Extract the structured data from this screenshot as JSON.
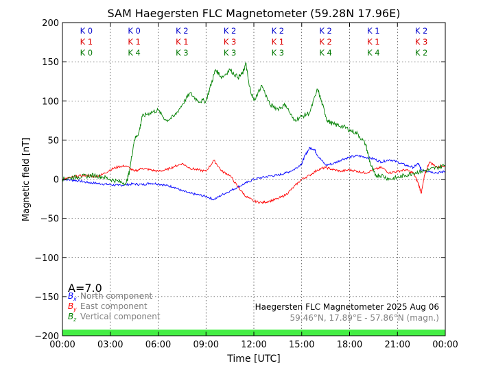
{
  "chart_data": {
    "type": "line",
    "title": "SAM Haegersten FLC Magnetometer (59.28N 17.96E)",
    "xlabel": "Time [UTC]",
    "ylabel": "Magnetic field [nT]",
    "xlim": [
      0,
      24
    ],
    "ylim": [
      -200,
      200
    ],
    "grid": true,
    "x_ticks": [
      0,
      3,
      6,
      9,
      12,
      15,
      18,
      21,
      24
    ],
    "x_tick_labels": [
      "00:00",
      "03:00",
      "06:00",
      "09:00",
      "12:00",
      "15:00",
      "18:00",
      "21:00",
      "00:00"
    ],
    "y_ticks": [
      200,
      150,
      100,
      50,
      0,
      -50,
      -100,
      -150,
      -200
    ],
    "y_tick_labels": [
      "200",
      "150",
      "100",
      "50",
      "0",
      "−50",
      "−100",
      "−150",
      "−200"
    ],
    "k_index_rows": [
      {
        "color": "#0000cc",
        "values": [
          "K 0",
          "K 0",
          "K 2",
          "K 2",
          "K 2",
          "K 2",
          "K 1",
          "K 2"
        ]
      },
      {
        "color": "#dd0000",
        "values": [
          "K 1",
          "K 1",
          "K 1",
          "K 3",
          "K 1",
          "K 2",
          "K 1",
          "K 3"
        ]
      },
      {
        "color": "#007700",
        "values": [
          "K 0",
          "K 4",
          "K 3",
          "K 3",
          "K 3",
          "K 4",
          "K 4",
          "K 2"
        ]
      }
    ],
    "a_index": "A=7.0",
    "legend": {
      "placement": "bottom-left",
      "entries": [
        {
          "symbol": "B",
          "sub": "x",
          "label": "North component",
          "color": "#0000ff"
        },
        {
          "symbol": "B",
          "sub": "y",
          "label": "East component",
          "color": "#ff0000"
        },
        {
          "symbol": "B",
          "sub": "z",
          "label": "Vertical component",
          "color": "#008000"
        }
      ]
    },
    "station_info": {
      "line1": "Haegersten FLC Magnetometer 2025 Aug 06",
      "line2": "59.46°N, 17.89°E - 57.86°N (magn.)"
    },
    "status_bar_color": "#44ee44",
    "series": [
      {
        "name": "North component",
        "color": "#0000ff",
        "x": [
          0,
          0.5,
          1,
          1.5,
          2,
          2.5,
          3,
          3.5,
          4,
          4.5,
          5,
          5.5,
          6,
          6.5,
          7,
          7.5,
          8,
          8.5,
          9,
          9.5,
          10,
          10.5,
          11,
          11.5,
          12,
          12.5,
          13,
          13.5,
          14,
          14.5,
          15,
          15.2,
          15.5,
          15.8,
          16,
          16.5,
          17,
          17.5,
          18,
          18.5,
          19,
          19.5,
          20,
          20.5,
          21,
          21.5,
          22,
          22.3,
          22.5,
          23,
          23.5,
          24
        ],
        "y": [
          0,
          -1,
          -2,
          -4,
          -5,
          -6,
          -7,
          -8,
          -7,
          -6,
          -7,
          -5,
          -6,
          -8,
          -10,
          -15,
          -18,
          -20,
          -22,
          -26,
          -20,
          -15,
          -10,
          -5,
          0,
          2,
          4,
          5,
          8,
          12,
          20,
          30,
          40,
          38,
          30,
          18,
          20,
          25,
          28,
          30,
          28,
          26,
          22,
          25,
          22,
          18,
          15,
          20,
          12,
          10,
          8,
          10
        ]
      },
      {
        "name": "East component",
        "color": "#ff0000",
        "x": [
          0,
          0.5,
          1,
          1.5,
          2,
          2.5,
          3,
          3.5,
          4,
          4.5,
          5,
          5.5,
          6,
          6.5,
          7,
          7.5,
          8,
          8.5,
          9,
          9.5,
          10,
          10.5,
          11,
          11.5,
          12,
          12.5,
          13,
          13.5,
          14,
          14.5,
          15,
          15.5,
          16,
          16.5,
          17,
          17.5,
          18,
          18.5,
          19,
          19.5,
          20,
          20.5,
          21,
          21.5,
          22,
          22.3,
          22.5,
          22.7,
          23,
          23.5,
          24
        ],
        "y": [
          0,
          2,
          4,
          5,
          3,
          6,
          12,
          16,
          17,
          10,
          14,
          12,
          10,
          12,
          16,
          20,
          14,
          12,
          10,
          24,
          10,
          5,
          -10,
          -22,
          -28,
          -30,
          -28,
          -25,
          -20,
          -10,
          0,
          5,
          12,
          15,
          12,
          10,
          12,
          10,
          8,
          12,
          15,
          8,
          10,
          12,
          8,
          -5,
          -18,
          5,
          22,
          15,
          18
        ]
      },
      {
        "name": "Vertical component",
        "color": "#008000",
        "x": [
          0,
          0.5,
          1,
          1.5,
          2,
          2.5,
          3,
          3.5,
          4,
          4.2,
          4.5,
          4.8,
          5,
          5.5,
          6,
          6.5,
          7,
          7.5,
          8,
          8.5,
          9,
          9.3,
          9.6,
          10,
          10.5,
          11,
          11.3,
          11.5,
          11.7,
          12,
          12.5,
          13,
          13.5,
          14,
          14.5,
          15,
          15.5,
          16,
          16.3,
          16.6,
          17,
          17.5,
          18,
          18.5,
          19,
          19.3,
          19.6,
          20,
          20.5,
          21,
          21.5,
          22,
          22.5,
          23,
          23.5,
          24
        ],
        "y": [
          0,
          2,
          3,
          4,
          5,
          3,
          0,
          -3,
          -5,
          10,
          50,
          60,
          80,
          85,
          88,
          75,
          80,
          95,
          110,
          100,
          100,
          120,
          140,
          130,
          140,
          130,
          135,
          148,
          120,
          100,
          120,
          95,
          90,
          95,
          75,
          80,
          85,
          115,
          95,
          75,
          70,
          68,
          63,
          58,
          45,
          20,
          5,
          5,
          0,
          2,
          5,
          8,
          10,
          12,
          15,
          18
        ]
      }
    ]
  }
}
